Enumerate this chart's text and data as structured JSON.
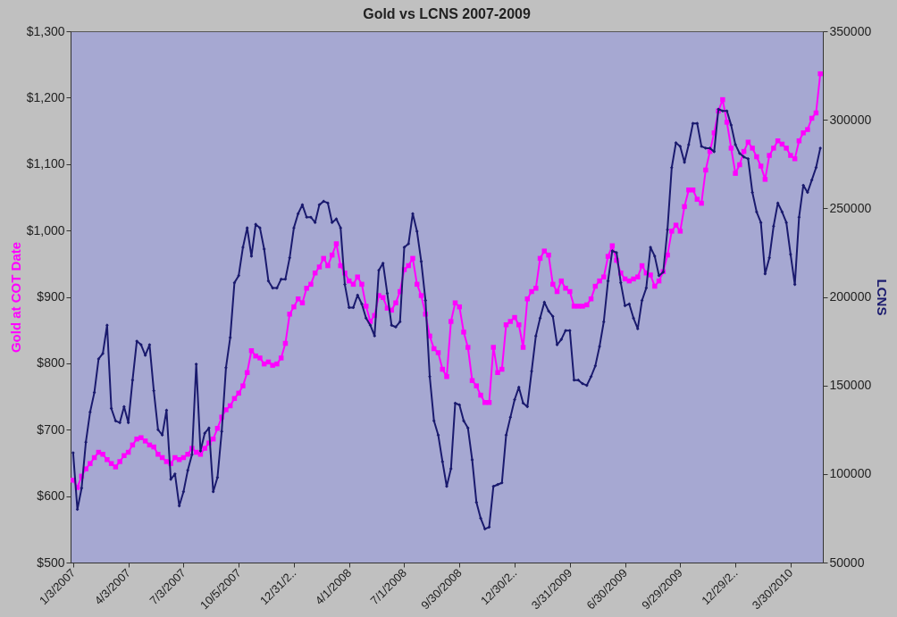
{
  "chart_data": {
    "type": "line",
    "title": "Gold vs LCNS  2007-2009",
    "ylabel": "Gold at COT Date",
    "y2label": "LCNS",
    "categories": [
      "1/3/2007",
      null,
      null,
      null,
      null,
      null,
      null,
      null,
      null,
      null,
      null,
      null,
      null,
      "4/3/2007",
      null,
      null,
      null,
      null,
      null,
      null,
      null,
      null,
      null,
      null,
      null,
      null,
      "7/3/2007",
      null,
      null,
      null,
      null,
      null,
      null,
      null,
      null,
      null,
      null,
      null,
      null,
      "10/5/2007",
      null,
      null,
      null,
      null,
      null,
      null,
      null,
      null,
      null,
      null,
      null,
      null,
      "12/31/2..",
      null,
      null,
      null,
      null,
      null,
      null,
      null,
      null,
      null,
      null,
      null,
      null,
      "4/1/2008",
      null,
      null,
      null,
      null,
      null,
      null,
      null,
      null,
      null,
      null,
      null,
      null,
      "7/1/2008",
      null,
      null,
      null,
      null,
      null,
      null,
      null,
      null,
      null,
      null,
      null,
      null,
      "9/30/2008",
      null,
      null,
      null,
      null,
      null,
      null,
      null,
      null,
      null,
      null,
      null,
      null,
      "12/30/2..",
      null,
      null,
      null,
      null,
      null,
      null,
      null,
      null,
      null,
      null,
      null,
      null,
      "3/31/2009",
      null,
      null,
      null,
      null,
      null,
      null,
      null,
      null,
      null,
      null,
      null,
      null,
      "6/30/2009",
      null,
      null,
      null,
      null,
      null,
      null,
      null,
      null,
      null,
      null,
      null,
      null,
      "9/29/2009",
      null,
      null,
      null,
      null,
      null,
      null,
      null,
      null,
      null,
      null,
      null,
      null,
      "12/29/2..",
      null,
      null,
      null,
      null,
      null,
      null,
      null,
      null,
      null,
      null,
      null,
      null,
      "3/30/2010",
      null,
      null,
      null,
      null,
      null,
      null,
      null
    ],
    "series": [
      {
        "color": "#ff00ff",
        "marker": "square",
        "axis": "y",
        "values": [
          624,
          613,
          630,
          641,
          649,
          658,
          666,
          663,
          655,
          649,
          644,
          652,
          661,
          666,
          677,
          686,
          688,
          683,
          677,
          674,
          663,
          658,
          652,
          649,
          658,
          655,
          658,
          663,
          672,
          666,
          663,
          672,
          680,
          686,
          702,
          719,
          730,
          736,
          747,
          755,
          766,
          786,
          819,
          811,
          808,
          799,
          802,
          797,
          799,
          808,
          830,
          874,
          885,
          897,
          891,
          913,
          919,
          936,
          945,
          958,
          947,
          963,
          980,
          947,
          936,
          924,
          919,
          930,
          919,
          886,
          863,
          872,
          902,
          899,
          883,
          880,
          891,
          908,
          941,
          947,
          958,
          919,
          902,
          874,
          841,
          822,
          816,
          791,
          780,
          863,
          891,
          885,
          847,
          824,
          774,
          766,
          752,
          741,
          741,
          824,
          786,
          791,
          858,
          863,
          869,
          858,
          824,
          897,
          908,
          913,
          958,
          969,
          963,
          919,
          908,
          924,
          913,
          908,
          886,
          886,
          886,
          888,
          897,
          916,
          924,
          930,
          961,
          977,
          955,
          936,
          927,
          924,
          927,
          930,
          947,
          936,
          933,
          916,
          924,
          938,
          963,
          999,
          1008,
          999,
          1036,
          1061,
          1061,
          1047,
          1041,
          1091,
          1119,
          1147,
          1180,
          1197,
          1163,
          1124,
          1086,
          1099,
          1119,
          1133,
          1124,
          1111,
          1097,
          1077,
          1113,
          1124,
          1135,
          1130,
          1124,
          1113,
          1108,
          1135,
          1147,
          1152,
          1169,
          1177,
          1236
        ]
      },
      {
        "color": "#1a1a6e",
        "marker": "diamond",
        "axis": "y2",
        "values": [
          112000,
          80000,
          92000,
          118000,
          135000,
          146000,
          165000,
          168000,
          184000,
          137000,
          130000,
          129000,
          138000,
          129000,
          153000,
          175000,
          173000,
          167000,
          173000,
          147000,
          125000,
          122000,
          136000,
          97000,
          100000,
          82000,
          90000,
          102000,
          111000,
          162000,
          113000,
          123000,
          126000,
          90000,
          98000,
          124000,
          160000,
          177000,
          208000,
          212000,
          228000,
          239000,
          223000,
          241000,
          239000,
          227000,
          209000,
          205000,
          205000,
          210000,
          210000,
          222000,
          239000,
          247000,
          252000,
          245000,
          245000,
          242000,
          252000,
          254000,
          253000,
          242000,
          244000,
          239000,
          207000,
          194000,
          194000,
          201000,
          196000,
          188000,
          184000,
          178000,
          215000,
          219000,
          202000,
          184000,
          183000,
          186000,
          228000,
          230000,
          247000,
          237000,
          220000,
          198000,
          155000,
          130000,
          122000,
          107000,
          93000,
          103000,
          140000,
          139000,
          130000,
          126000,
          108000,
          84000,
          75000,
          69000,
          70000,
          93000,
          94000,
          95000,
          122000,
          132000,
          142000,
          149000,
          140000,
          138000,
          158000,
          178000,
          188000,
          197000,
          192000,
          189000,
          173000,
          176000,
          181000,
          181000,
          153000,
          153000,
          151000,
          150000,
          155000,
          161000,
          172000,
          186000,
          209000,
          226000,
          225000,
          208000,
          195000,
          196000,
          188000,
          182000,
          198000,
          205000,
          228000,
          223000,
          212000,
          214000,
          238000,
          273000,
          287000,
          285000,
          276000,
          286000,
          298000,
          298000,
          285000,
          284000,
          284000,
          282000,
          306000,
          305000,
          305000,
          297000,
          286000,
          281000,
          279000,
          278000,
          259000,
          248000,
          242000,
          213000,
          222000,
          240000,
          253000,
          248000,
          242000,
          224000,
          207000,
          245000,
          263000,
          259000,
          266000,
          273000,
          284000
        ]
      }
    ],
    "ylim": [
      500,
      1300
    ],
    "yticks": [
      {
        "value": 500,
        "label": "$500"
      },
      {
        "value": 600,
        "label": "$600"
      },
      {
        "value": 700,
        "label": "$700"
      },
      {
        "value": 800,
        "label": "$800"
      },
      {
        "value": 900,
        "label": "$900"
      },
      {
        "value": 1000,
        "label": "$1,000"
      },
      {
        "value": 1100,
        "label": "$1,100"
      },
      {
        "value": 1200,
        "label": "$1,200"
      },
      {
        "value": 1300,
        "label": "$1,300"
      }
    ],
    "y2lim": [
      50000,
      350000
    ],
    "y2ticks": [
      50000,
      100000,
      150000,
      200000,
      250000,
      300000,
      350000
    ]
  }
}
